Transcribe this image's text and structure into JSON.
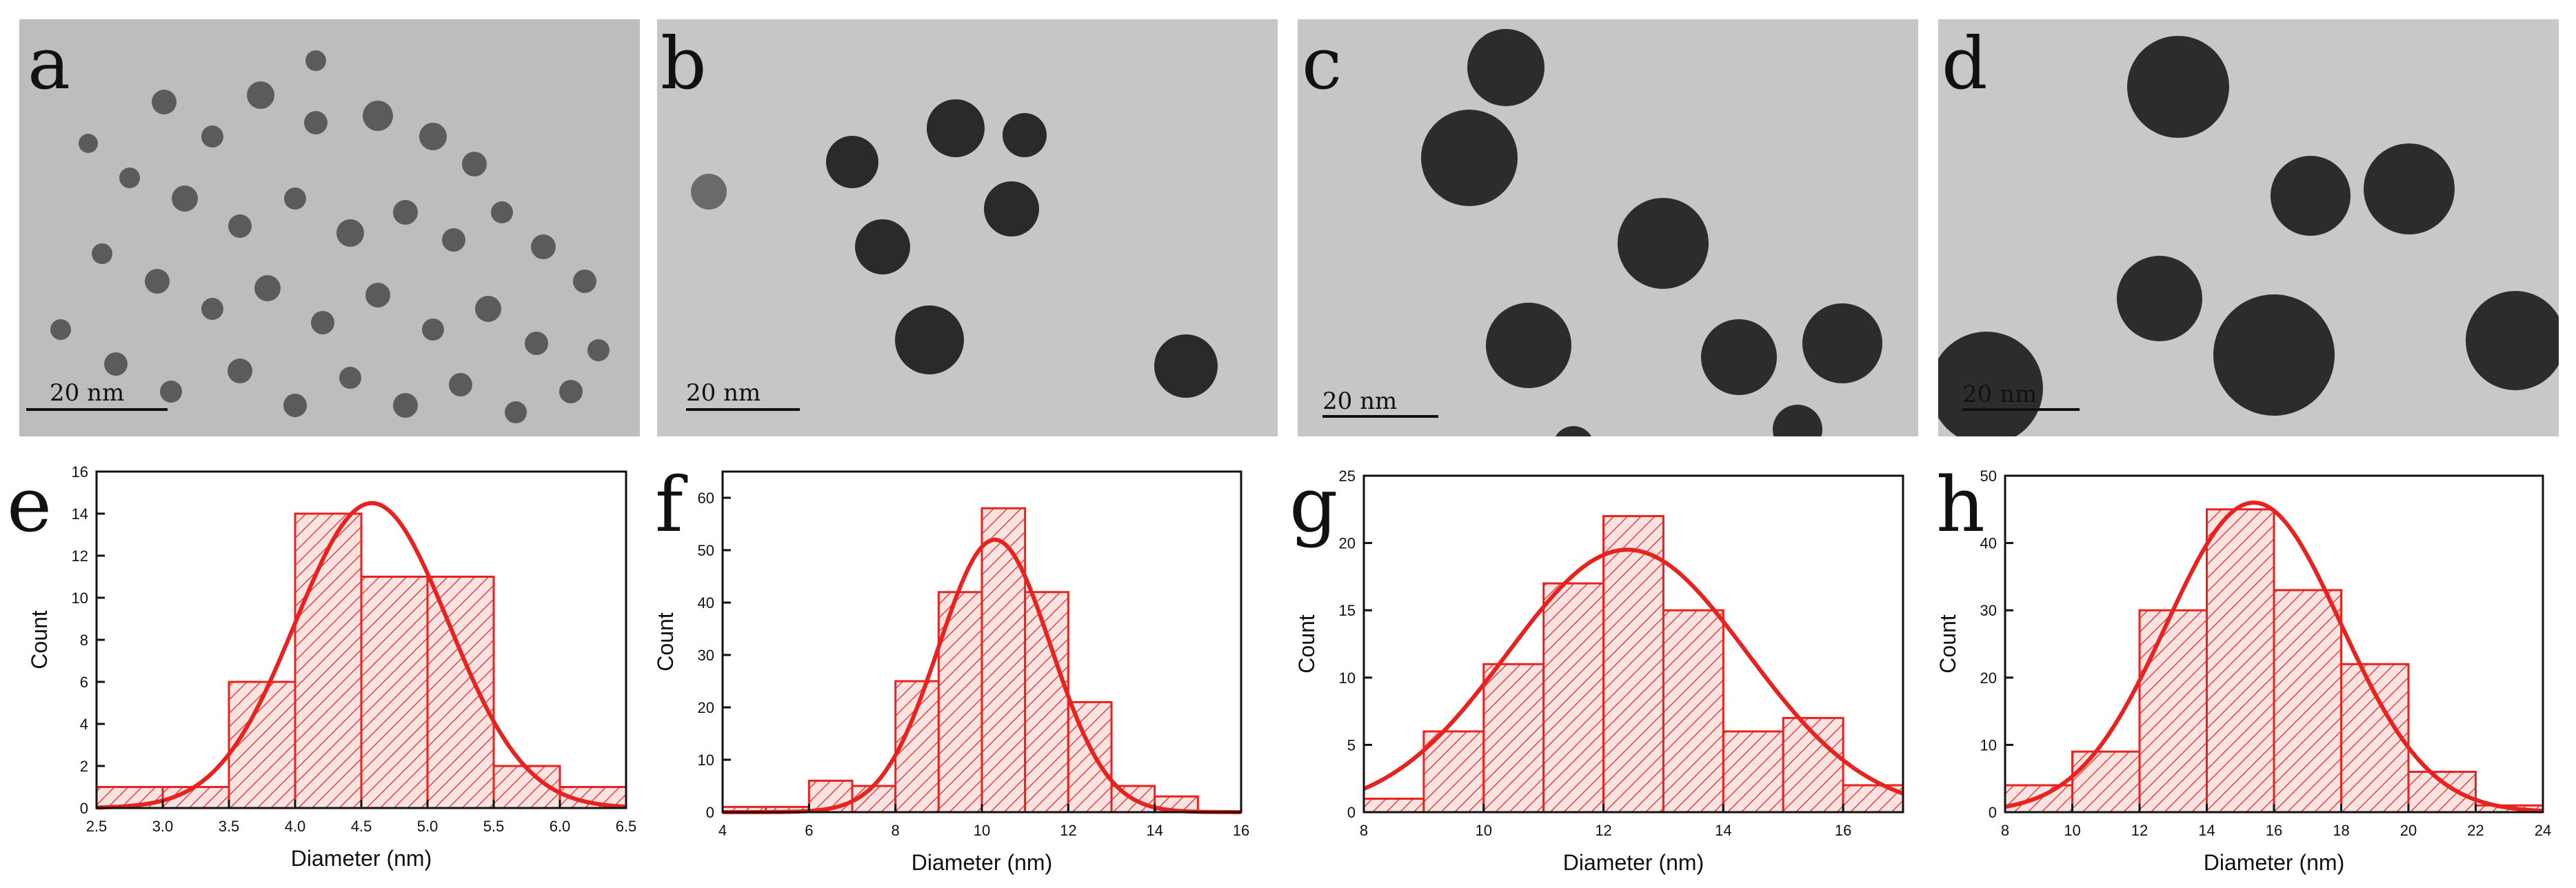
{
  "tem_panels": [
    {
      "letter": "a",
      "scale_label": "20 nm"
    },
    {
      "letter": "b",
      "scale_label": "20 nm"
    },
    {
      "letter": "c",
      "scale_label": "20 nm"
    },
    {
      "letter": "d",
      "scale_label": "20 nm"
    }
  ],
  "chart_data": [
    {
      "type": "bar",
      "panel_letter": "e",
      "xlabel": "Diameter (nm)",
      "ylabel": "Count",
      "xlim": [
        2.5,
        6.5
      ],
      "ylim": [
        0,
        16
      ],
      "xticks": [
        "2.5",
        "3.0",
        "3.5",
        "4.0",
        "4.5",
        "5.0",
        "5.5",
        "6.0",
        "6.5"
      ],
      "yticks": [
        "0",
        "2",
        "4",
        "6",
        "8",
        "10",
        "12",
        "14",
        "16"
      ],
      "bins": [
        [
          2.5,
          3.0
        ],
        [
          3.0,
          3.5
        ],
        [
          3.5,
          4.0
        ],
        [
          4.0,
          4.5
        ],
        [
          4.5,
          5.0
        ],
        [
          5.0,
          5.5
        ],
        [
          5.5,
          6.0
        ],
        [
          6.0,
          6.5
        ]
      ],
      "values": [
        1,
        1,
        6,
        14,
        11,
        11,
        2,
        1
      ],
      "fit": {
        "type": "gaussian",
        "center": 4.58,
        "sigma": 0.58,
        "peak": 14.5
      }
    },
    {
      "type": "bar",
      "panel_letter": "f",
      "xlabel": "Diameter (nm)",
      "ylabel": "Count",
      "xlim": [
        4,
        16
      ],
      "ylim": [
        0,
        65
      ],
      "xticks": [
        "4",
        "6",
        "8",
        "10",
        "12",
        "14",
        "16"
      ],
      "yticks": [
        "0",
        "10",
        "20",
        "30",
        "40",
        "50",
        "60"
      ],
      "bins": [
        [
          4,
          5
        ],
        [
          5,
          6
        ],
        [
          6,
          7
        ],
        [
          7,
          8
        ],
        [
          8,
          9
        ],
        [
          9,
          10
        ],
        [
          10,
          11
        ],
        [
          11,
          12
        ],
        [
          12,
          13
        ],
        [
          13,
          14
        ],
        [
          14,
          15
        ]
      ],
      "values": [
        1,
        1,
        6,
        5,
        25,
        42,
        58,
        42,
        21,
        5,
        3
      ],
      "fit": {
        "type": "gaussian",
        "center": 10.3,
        "sigma": 1.3,
        "peak": 52
      }
    },
    {
      "type": "bar",
      "panel_letter": "g",
      "xlabel": "Diameter (nm)",
      "ylabel": "Count",
      "xlim": [
        8,
        17
      ],
      "ylim": [
        0,
        25
      ],
      "xticks": [
        "8",
        "10",
        "12",
        "14",
        "16"
      ],
      "yticks": [
        "0",
        "5",
        "10",
        "15",
        "20",
        "25"
      ],
      "bins": [
        [
          8,
          9
        ],
        [
          9,
          10
        ],
        [
          10,
          11
        ],
        [
          11,
          12
        ],
        [
          12,
          13
        ],
        [
          13,
          14
        ],
        [
          14,
          15
        ],
        [
          15,
          16
        ],
        [
          16,
          17
        ]
      ],
      "values": [
        1,
        6,
        11,
        17,
        22,
        15,
        6,
        7,
        2
      ],
      "fit": {
        "type": "gaussian",
        "center": 12.4,
        "sigma": 2.0,
        "peak": 19.5
      }
    },
    {
      "type": "bar",
      "panel_letter": "h",
      "xlabel": "Diameter (nm)",
      "ylabel": "Count",
      "xlim": [
        8,
        24
      ],
      "ylim": [
        0,
        50
      ],
      "xticks": [
        "8",
        "10",
        "12",
        "14",
        "16",
        "18",
        "20",
        "22",
        "24"
      ],
      "yticks": [
        "0",
        "10",
        "20",
        "30",
        "40",
        "50"
      ],
      "bins": [
        [
          8,
          10
        ],
        [
          10,
          12
        ],
        [
          12,
          14
        ],
        [
          14,
          16
        ],
        [
          16,
          18
        ],
        [
          18,
          20
        ],
        [
          20,
          22
        ],
        [
          22,
          24
        ]
      ],
      "values": [
        4,
        9,
        30,
        45,
        33,
        22,
        6,
        1
      ],
      "fit": {
        "type": "gaussian",
        "center": 15.4,
        "sigma": 2.6,
        "peak": 46
      }
    }
  ],
  "colors": {
    "bar": "#e8231f",
    "hatch": "#e8231f",
    "fit": "#e8231f",
    "axis": "#111111"
  }
}
